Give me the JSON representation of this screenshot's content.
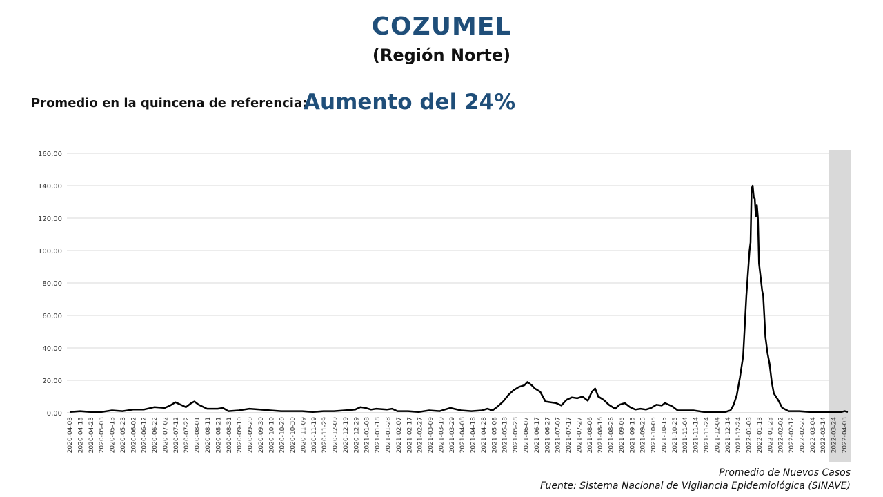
{
  "header": {
    "title": "COZUMEL",
    "subtitle": "(Región Norte)",
    "reference_label": "Promedio en la quincena de referencia:",
    "reference_value": "Aumento del 24%"
  },
  "footer": {
    "series_note": "Promedio de Nuevos Casos",
    "source": "Fuente: Sistema Nacional de Vigilancia Epidemiológica (SINAVE)"
  },
  "colors": {
    "title": "#1f4e79",
    "line": "#000000",
    "grid": "#d9d9d9",
    "shade": "#d9d9d9"
  },
  "chart_data": {
    "type": "line",
    "ylim": [
      0,
      160
    ],
    "yticks": [
      "0,00",
      "20,00",
      "40,00",
      "60,00",
      "80,00",
      "100,00",
      "120,00",
      "140,00",
      "160,00"
    ],
    "xticks": [
      "2020-04-03",
      "2020-04-13",
      "2020-04-23",
      "2020-05-03",
      "2020-05-13",
      "2020-05-23",
      "2020-06-02",
      "2020-06-12",
      "2020-06-22",
      "2020-07-02",
      "2020-07-12",
      "2020-07-22",
      "2020-08-01",
      "2020-08-11",
      "2020-08-21",
      "2020-08-31",
      "2020-09-10",
      "2020-09-20",
      "2020-09-30",
      "2020-10-10",
      "2020-10-20",
      "2020-10-30",
      "2020-11-09",
      "2020-11-19",
      "2020-11-29",
      "2020-12-09",
      "2020-12-19",
      "2020-12-29",
      "2021-01-08",
      "2021-01-18",
      "2021-01-28",
      "2021-02-07",
      "2021-02-17",
      "2021-02-27",
      "2021-03-09",
      "2021-03-19",
      "2021-03-29",
      "2021-04-08",
      "2021-04-18",
      "2021-04-28",
      "2021-05-08",
      "2021-05-18",
      "2021-05-28",
      "2021-06-07",
      "2021-06-17",
      "2021-06-27",
      "2021-07-07",
      "2021-07-17",
      "2021-07-27",
      "2021-08-06",
      "2021-08-16",
      "2021-08-26",
      "2021-09-05",
      "2021-09-15",
      "2021-09-25",
      "2021-10-05",
      "2021-10-15",
      "2021-10-25",
      "2021-11-04",
      "2021-11-14",
      "2021-11-24",
      "2021-12-04",
      "2021-12-14",
      "2021-12-24",
      "2022-01-03",
      "2022-01-13",
      "2022-01-23",
      "2022-02-02",
      "2022-02-12",
      "2022-02-22",
      "2022-03-04",
      "2022-03-14",
      "2022-03-24",
      "2022-04-03"
    ],
    "series": [
      {
        "points": [
          [
            "2020-04-03",
            0.5
          ],
          [
            "2020-04-13",
            1
          ],
          [
            "2020-04-23",
            0.5
          ],
          [
            "2020-05-03",
            0.5
          ],
          [
            "2020-05-13",
            1.5
          ],
          [
            "2020-05-23",
            1
          ],
          [
            "2020-06-02",
            2
          ],
          [
            "2020-06-12",
            2
          ],
          [
            "2020-06-22",
            3.5
          ],
          [
            "2020-07-02",
            3
          ],
          [
            "2020-07-07",
            4.5
          ],
          [
            "2020-07-12",
            6.5
          ],
          [
            "2020-07-17",
            5
          ],
          [
            "2020-07-22",
            3.5
          ],
          [
            "2020-07-27",
            6
          ],
          [
            "2020-07-30",
            7
          ],
          [
            "2020-08-03",
            5
          ],
          [
            "2020-08-11",
            2.5
          ],
          [
            "2020-08-21",
            2.5
          ],
          [
            "2020-08-26",
            3
          ],
          [
            "2020-08-31",
            1
          ],
          [
            "2020-09-10",
            1.5
          ],
          [
            "2020-09-20",
            2.5
          ],
          [
            "2020-09-30",
            2
          ],
          [
            "2020-10-10",
            1.5
          ],
          [
            "2020-10-20",
            1
          ],
          [
            "2020-10-30",
            1
          ],
          [
            "2020-11-09",
            1
          ],
          [
            "2020-11-19",
            0.5
          ],
          [
            "2020-11-29",
            1
          ],
          [
            "2020-12-09",
            1
          ],
          [
            "2020-12-19",
            1.5
          ],
          [
            "2020-12-29",
            2
          ],
          [
            "2021-01-03",
            3.5
          ],
          [
            "2021-01-08",
            3
          ],
          [
            "2021-01-13",
            2
          ],
          [
            "2021-01-18",
            2.5
          ],
          [
            "2021-01-28",
            2
          ],
          [
            "2021-02-02",
            2.5
          ],
          [
            "2021-02-07",
            1
          ],
          [
            "2021-02-17",
            1
          ],
          [
            "2021-02-27",
            0.5
          ],
          [
            "2021-03-09",
            1.5
          ],
          [
            "2021-03-19",
            1
          ],
          [
            "2021-03-29",
            3
          ],
          [
            "2021-04-08",
            1.5
          ],
          [
            "2021-04-18",
            1
          ],
          [
            "2021-04-28",
            1.5
          ],
          [
            "2021-05-03",
            2.5
          ],
          [
            "2021-05-08",
            1.5
          ],
          [
            "2021-05-13",
            4
          ],
          [
            "2021-05-18",
            7
          ],
          [
            "2021-05-23",
            11
          ],
          [
            "2021-05-28",
            14
          ],
          [
            "2021-06-02",
            16
          ],
          [
            "2021-06-07",
            17
          ],
          [
            "2021-06-10",
            19
          ],
          [
            "2021-06-14",
            17
          ],
          [
            "2021-06-17",
            15
          ],
          [
            "2021-06-22",
            13
          ],
          [
            "2021-06-27",
            7
          ],
          [
            "2021-07-07",
            6
          ],
          [
            "2021-07-12",
            4.5
          ],
          [
            "2021-07-17",
            8
          ],
          [
            "2021-07-22",
            9.5
          ],
          [
            "2021-07-27",
            9
          ],
          [
            "2021-08-01",
            10
          ],
          [
            "2021-08-06",
            7.5
          ],
          [
            "2021-08-10",
            13
          ],
          [
            "2021-08-13",
            15
          ],
          [
            "2021-08-16",
            10
          ],
          [
            "2021-08-21",
            8
          ],
          [
            "2021-08-26",
            5
          ],
          [
            "2021-09-01",
            2.5
          ],
          [
            "2021-09-05",
            5
          ],
          [
            "2021-09-10",
            6
          ],
          [
            "2021-09-15",
            3.5
          ],
          [
            "2021-09-20",
            2
          ],
          [
            "2021-09-25",
            2.5
          ],
          [
            "2021-09-30",
            2
          ],
          [
            "2021-10-05",
            3
          ],
          [
            "2021-10-10",
            5
          ],
          [
            "2021-10-15",
            4.5
          ],
          [
            "2021-10-18",
            6
          ],
          [
            "2021-10-25",
            4
          ],
          [
            "2021-10-30",
            1.5
          ],
          [
            "2021-11-04",
            1.5
          ],
          [
            "2021-11-14",
            1.5
          ],
          [
            "2021-11-24",
            0.5
          ],
          [
            "2021-12-04",
            0.5
          ],
          [
            "2021-12-14",
            0.5
          ],
          [
            "2021-12-19",
            1.5
          ],
          [
            "2021-12-22",
            5
          ],
          [
            "2021-12-25",
            11
          ],
          [
            "2021-12-28",
            22
          ],
          [
            "2021-12-31",
            35
          ],
          [
            "2022-01-03",
            72
          ],
          [
            "2022-01-06",
            100
          ],
          [
            "2022-01-07",
            105
          ],
          [
            "2022-01-08",
            138
          ],
          [
            "2022-01-09",
            140
          ],
          [
            "2022-01-10",
            133
          ],
          [
            "2022-01-11",
            132
          ],
          [
            "2022-01-12",
            121
          ],
          [
            "2022-01-13",
            128
          ],
          [
            "2022-01-14",
            120
          ],
          [
            "2022-01-15",
            92
          ],
          [
            "2022-01-18",
            75
          ],
          [
            "2022-01-19",
            72
          ],
          [
            "2022-01-21",
            47
          ],
          [
            "2022-01-23",
            37
          ],
          [
            "2022-01-25",
            30
          ],
          [
            "2022-01-27",
            19
          ],
          [
            "2022-01-29",
            12
          ],
          [
            "2022-02-02",
            8
          ],
          [
            "2022-02-06",
            3
          ],
          [
            "2022-02-12",
            1
          ],
          [
            "2022-02-22",
            1
          ],
          [
            "2022-03-04",
            0.5
          ],
          [
            "2022-03-14",
            0.5
          ],
          [
            "2022-03-24",
            0.5
          ],
          [
            "2022-04-03",
            0.5
          ],
          [
            "2022-04-06",
            1
          ],
          [
            "2022-04-09",
            0.5
          ]
        ]
      }
    ],
    "shaded_range": [
      "2022-03-28",
      "2022-04-10"
    ]
  }
}
